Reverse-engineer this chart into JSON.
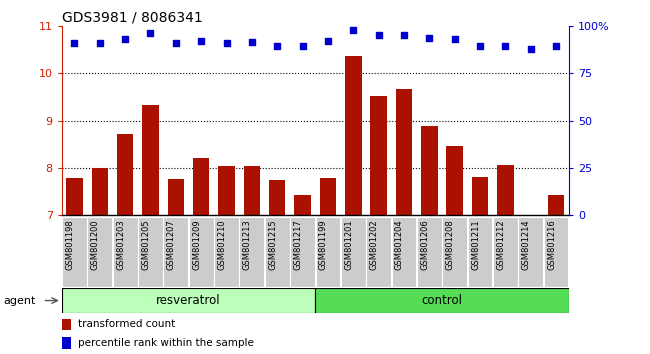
{
  "title": "GDS3981 / 8086341",
  "categories": [
    "GSM801198",
    "GSM801200",
    "GSM801203",
    "GSM801205",
    "GSM801207",
    "GSM801209",
    "GSM801210",
    "GSM801213",
    "GSM801215",
    "GSM801217",
    "GSM801199",
    "GSM801201",
    "GSM801202",
    "GSM801204",
    "GSM801206",
    "GSM801208",
    "GSM801211",
    "GSM801212",
    "GSM801214",
    "GSM801216"
  ],
  "bar_values": [
    7.78,
    8.0,
    8.72,
    9.33,
    7.77,
    8.2,
    8.05,
    8.05,
    7.75,
    7.43,
    7.78,
    10.37,
    9.52,
    9.67,
    8.88,
    8.47,
    7.8,
    8.07,
    7.0,
    7.43
  ],
  "percentile_values": [
    10.63,
    10.63,
    10.72,
    10.85,
    10.63,
    10.68,
    10.63,
    10.65,
    10.57,
    10.57,
    10.68,
    10.92,
    10.8,
    10.8,
    10.75,
    10.72,
    10.58,
    10.58,
    10.52,
    10.57
  ],
  "bar_color": "#aa1100",
  "percentile_color": "#0000cc",
  "ylim": [
    7,
    11
  ],
  "yticks": [
    7,
    8,
    9,
    10,
    11
  ],
  "y2lim": [
    0,
    100
  ],
  "y2ticks": [
    0,
    25,
    50,
    75,
    100
  ],
  "y2ticklabels": [
    "0",
    "25",
    "50",
    "75",
    "100%"
  ],
  "group1_label": "resveratrol",
  "group2_label": "control",
  "group1_count": 10,
  "group2_count": 10,
  "agent_label": "agent",
  "legend_bar": "transformed count",
  "legend_pct": "percentile rank within the sample",
  "xticklabel_bg": "#cccccc",
  "group1_bg": "#bbffbb",
  "group2_bg": "#55dd55",
  "bar_bottom": 7.0,
  "title_fontsize": 10,
  "tick_fontsize": 8,
  "label_fontsize": 8
}
